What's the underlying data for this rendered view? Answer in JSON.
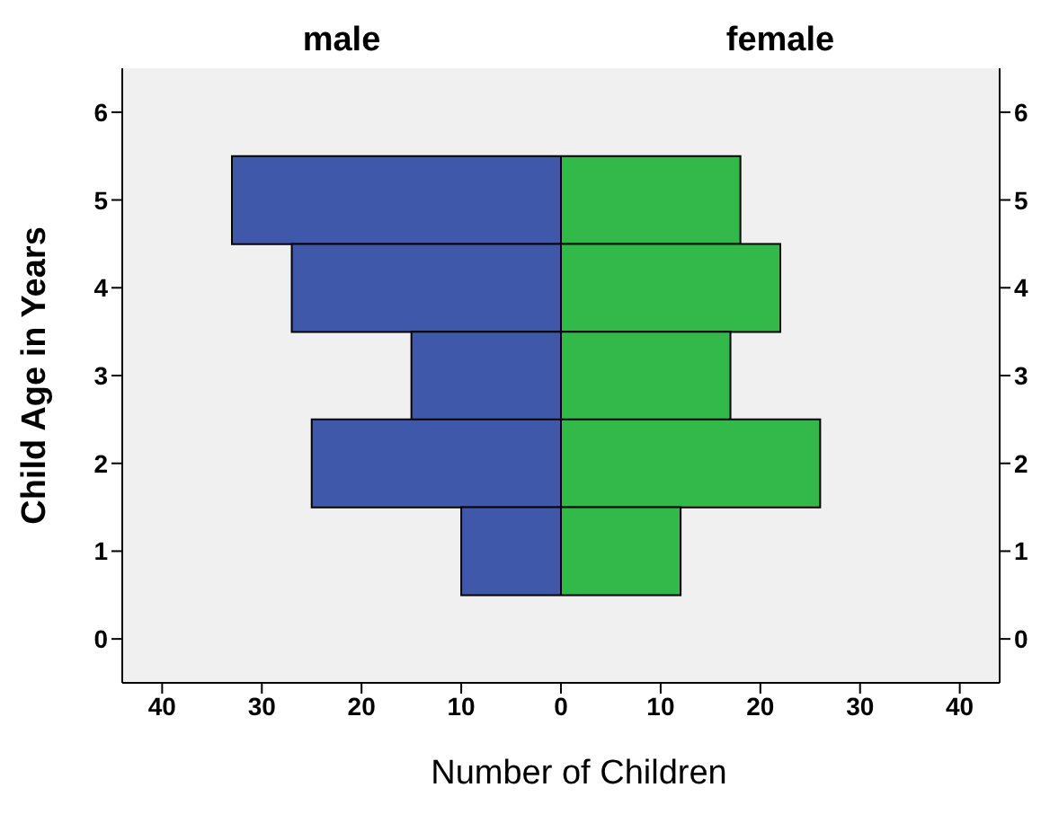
{
  "chart_data": [
    {
      "type": "bar",
      "orientation": "horizontal",
      "title": "male",
      "xlabel": "Number of Children",
      "ylabel": "Child Age in Years",
      "categories": [
        "6",
        "5",
        "4",
        "3",
        "2",
        "1",
        "0"
      ],
      "values": [
        null,
        33,
        27,
        15,
        25,
        10,
        null
      ],
      "color": "#3f58aa",
      "xlim": [
        44,
        0
      ],
      "xticks": [
        40,
        30,
        20,
        10,
        0
      ],
      "grid": false,
      "legend": false
    },
    {
      "type": "bar",
      "orientation": "horizontal",
      "title": "female",
      "categories": [
        "6",
        "5",
        "4",
        "3",
        "2",
        "1",
        "0"
      ],
      "values": [
        null,
        18,
        22,
        17,
        26,
        12,
        null
      ],
      "color": "#33b84a",
      "xlim": [
        0,
        44
      ],
      "xticks": [
        {
          "value": 0,
          "label": null
        },
        10,
        20,
        30,
        40
      ],
      "grid": false,
      "legend": false
    }
  ]
}
